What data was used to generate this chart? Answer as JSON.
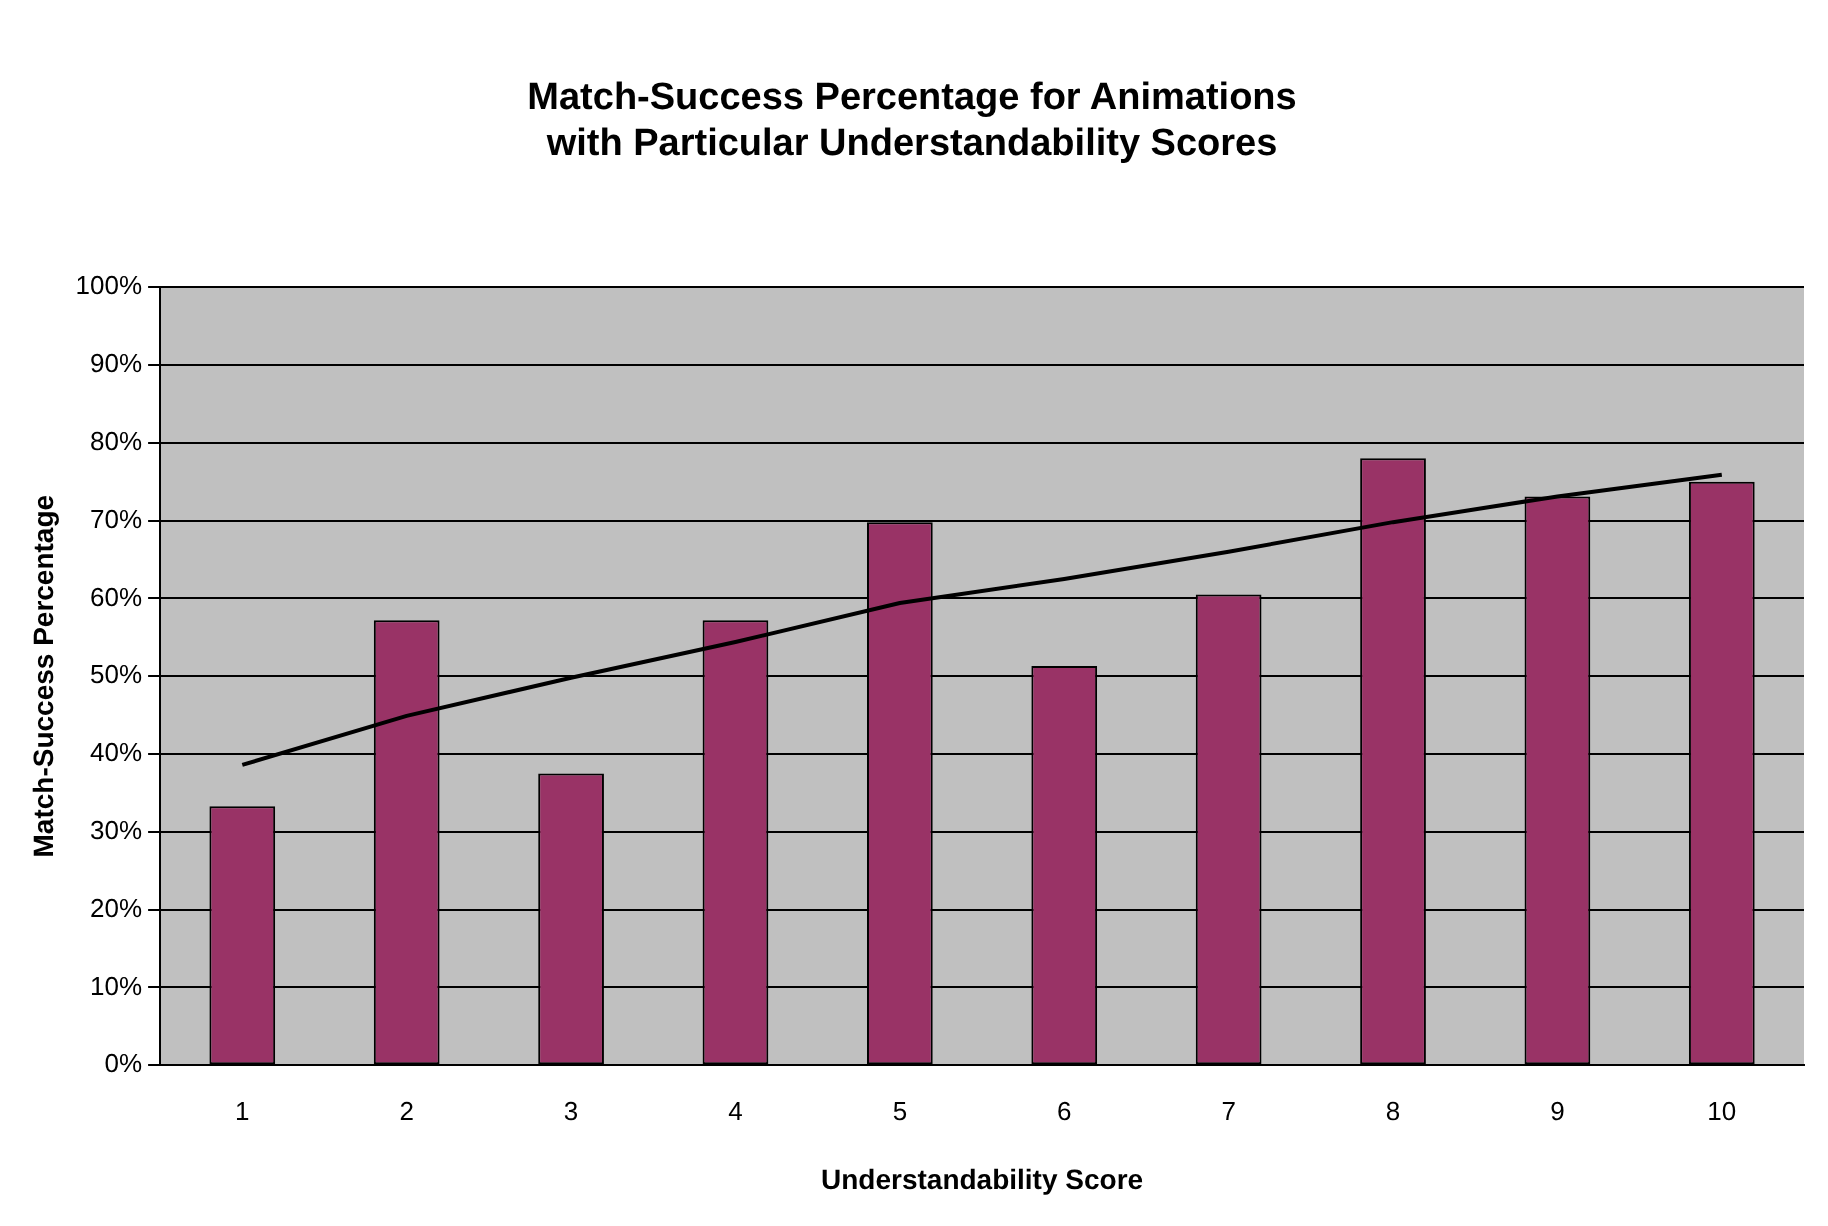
{
  "chart_data": {
    "type": "bar",
    "title": "Match-Success Percentage for Animations\nwith Particular Understandability Scores",
    "xlabel": "Understandability Score",
    "ylabel": "Match-Success Percentage",
    "categories": [
      "1",
      "2",
      "3",
      "4",
      "5",
      "6",
      "7",
      "8",
      "9",
      "10"
    ],
    "series": [
      {
        "color": "#993366",
        "values": [
          33.3,
          57.2,
          37.5,
          57.2,
          69.8,
          51.3,
          60.5,
          78,
          73.1,
          75
        ]
      },
      {
        "type": "line",
        "color": "#000000",
        "values": [
          38.6,
          44.9,
          49.8,
          54.4,
          59.4,
          62.5,
          66,
          69.8,
          73.1,
          75.9
        ]
      }
    ],
    "ylim": [
      0,
      100
    ],
    "yticks": [
      {
        "value": 0,
        "label": "0%"
      },
      {
        "value": 10,
        "label": "10%"
      },
      {
        "value": 20,
        "label": "20%"
      },
      {
        "value": 30,
        "label": "30%"
      },
      {
        "value": 40,
        "label": "40%"
      },
      {
        "value": 50,
        "label": "50%"
      },
      {
        "value": 60,
        "label": "60%"
      },
      {
        "value": 70,
        "label": "70%"
      },
      {
        "value": 80,
        "label": "80%"
      },
      {
        "value": 90,
        "label": "90%"
      },
      {
        "value": 100,
        "label": "100%"
      }
    ],
    "grid": "y",
    "legend": false,
    "marker": "none",
    "line_style": "solid"
  }
}
